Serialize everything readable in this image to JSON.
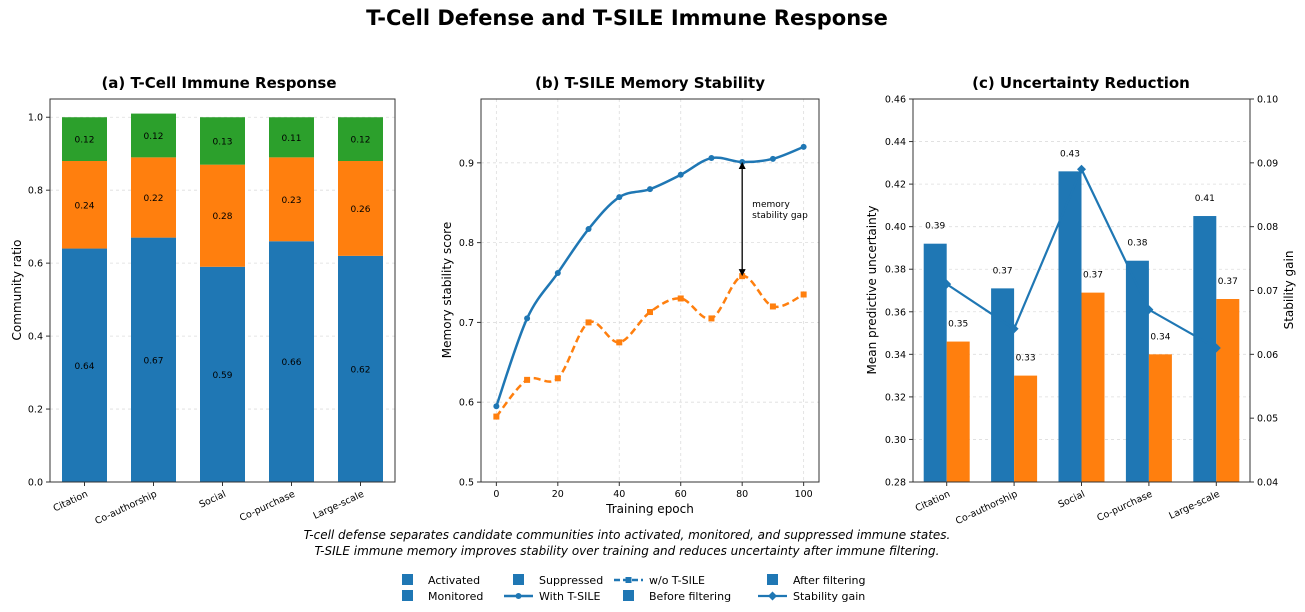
{
  "figure": {
    "title": "T-Cell Defense and T-SILE Immune Response",
    "caption": [
      "T-cell defense separates candidate communities into activated, monitored, and suppressed immune states.",
      "T-SILE immune memory improves stability over training and reduces uncertainty after immune filtering."
    ]
  },
  "colors": {
    "blue": "#1f77b4",
    "orange": "#ff7f0e",
    "green": "#2ca02c",
    "axis": "#333333",
    "grid": "#dddddd"
  },
  "legend": [
    {
      "label": "Activated",
      "marker": "square",
      "color": "#1f77b4"
    },
    {
      "label": "Monitored",
      "marker": "square",
      "color": "#1f77b4"
    },
    {
      "label": "Suppressed",
      "marker": "square",
      "color": "#1f77b4"
    },
    {
      "label": "With T-SILE",
      "marker": "line-dot",
      "color": "#1f77b4"
    },
    {
      "label": "w/o T-SILE",
      "marker": "dash-square",
      "color": "#1f77b4"
    },
    {
      "label": "Before filtering",
      "marker": "square",
      "color": "#1f77b4"
    },
    {
      "label": "After filtering",
      "marker": "square",
      "color": "#1f77b4"
    },
    {
      "label": "Stability gain",
      "marker": "line-diamond",
      "color": "#1f77b4"
    }
  ],
  "chart_data": [
    {
      "type": "bar",
      "stacked": true,
      "title": "(a) T-Cell Immune Response",
      "xlabel": "",
      "ylabel": "Community ratio",
      "ylim": [
        0,
        1.05
      ],
      "yticks": [
        0.0,
        0.2,
        0.4,
        0.6,
        0.8,
        1.0
      ],
      "categories": [
        "Citation",
        "Co-authorship",
        "Social",
        "Co-purchase",
        "Large-scale"
      ],
      "series": [
        {
          "name": "Activated",
          "color": "#1f77b4",
          "values": [
            0.64,
            0.67,
            0.59,
            0.66,
            0.62
          ],
          "labels": [
            "0.64",
            "0.67",
            "0.59",
            "0.66",
            "0.62"
          ]
        },
        {
          "name": "Monitored",
          "color": "#ff7f0e",
          "values": [
            0.24,
            0.22,
            0.28,
            0.23,
            0.26
          ],
          "labels": [
            "0.24",
            "0.22",
            "0.28",
            "0.23",
            "0.26"
          ]
        },
        {
          "name": "Suppressed",
          "color": "#2ca02c",
          "values": [
            0.12,
            0.12,
            0.13,
            0.11,
            0.12
          ],
          "labels": [
            "0.12",
            "0.12",
            "0.13",
            "0.11",
            "0.12"
          ]
        }
      ],
      "grid": true
    },
    {
      "type": "line",
      "title": "(b) T-SILE Memory Stability",
      "xlabel": "Training epoch",
      "ylabel": "Memory stability score",
      "xlim": [
        -5,
        105
      ],
      "ylim": [
        0.5,
        0.98
      ],
      "xticks": [
        0,
        20,
        40,
        60,
        80,
        100
      ],
      "yticks": [
        0.5,
        0.6,
        0.7,
        0.8,
        0.9
      ],
      "grid": true,
      "series": [
        {
          "name": "With T-SILE",
          "color": "#1f77b4",
          "style": "solid",
          "marker": "circle",
          "x": [
            0,
            10,
            20,
            30,
            40,
            50,
            60,
            70,
            80,
            90,
            100
          ],
          "y": [
            0.595,
            0.705,
            0.762,
            0.817,
            0.857,
            0.867,
            0.885,
            0.906,
            0.901,
            0.905,
            0.92
          ]
        },
        {
          "name": "w/o T-SILE",
          "color": "#ff7f0e",
          "style": "dashed",
          "marker": "square",
          "x": [
            0,
            10,
            20,
            30,
            40,
            50,
            60,
            70,
            80,
            90,
            100
          ],
          "y": [
            0.582,
            0.628,
            0.63,
            0.7,
            0.675,
            0.713,
            0.73,
            0.705,
            0.758,
            0.72,
            0.735
          ]
        }
      ],
      "annotation": {
        "text": [
          "memory",
          "stability gap"
        ],
        "x": 80,
        "y_top": 0.901,
        "y_bottom": 0.758
      }
    },
    {
      "type": "bar",
      "title": "(c) Uncertainty Reduction",
      "xlabel": "",
      "ylabel": "Mean predictive uncertainty",
      "ylabel_right": "Stability gain",
      "ylim": [
        0.28,
        0.46
      ],
      "ylim_right": [
        0.04,
        0.1
      ],
      "yticks": [
        0.28,
        0.3,
        0.32,
        0.34,
        0.36,
        0.38,
        0.4,
        0.42,
        0.44,
        0.46
      ],
      "yticks_right": [
        0.04,
        0.05,
        0.06,
        0.07,
        0.08,
        0.09,
        0.1
      ],
      "categories": [
        "Citation",
        "Co-authorship",
        "Social",
        "Co-purchase",
        "Large-scale"
      ],
      "series": [
        {
          "name": "Before filtering",
          "color": "#1f77b4",
          "values": [
            0.392,
            0.371,
            0.426,
            0.384,
            0.405
          ],
          "labels": [
            "0.39",
            "0.37",
            "0.43",
            "0.38",
            "0.41"
          ]
        },
        {
          "name": "After filtering",
          "color": "#ff7f0e",
          "values": [
            0.346,
            0.33,
            0.369,
            0.34,
            0.366
          ],
          "labels": [
            "0.35",
            "0.33",
            "0.37",
            "0.34",
            "0.37"
          ]
        }
      ],
      "line_series": {
        "name": "Stability gain",
        "color": "#1f77b4",
        "marker": "diamond",
        "values": [
          0.071,
          0.064,
          0.089,
          0.067,
          0.061
        ]
      },
      "grid": true
    }
  ]
}
